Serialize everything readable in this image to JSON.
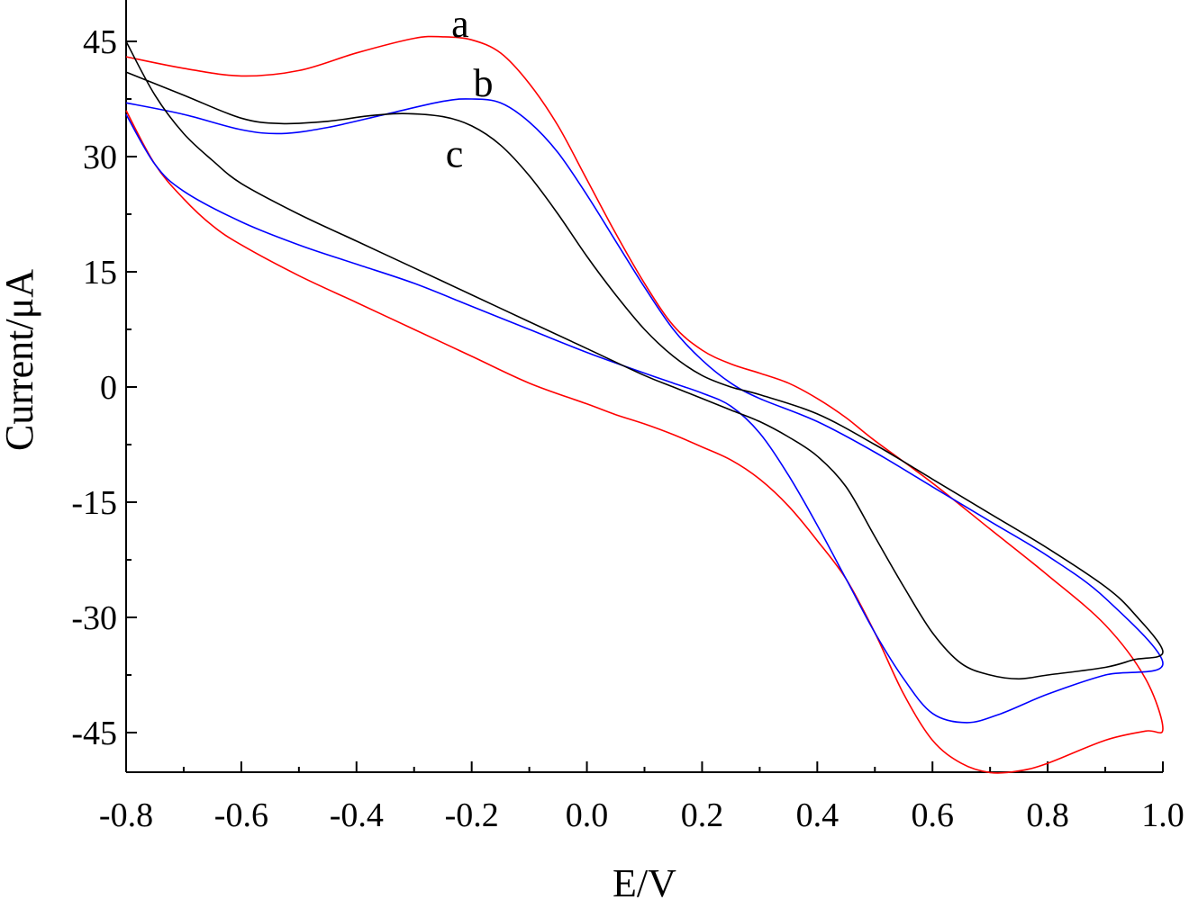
{
  "chart_data": {
    "type": "line",
    "xlabel": "E/V",
    "ylabel": "Current/μA",
    "xlim": [
      -0.8,
      1.0
    ],
    "ylim": [
      -50,
      50
    ],
    "xticks": [
      "-0.8",
      "-0.6",
      "-0.4",
      "-0.2",
      "0.0",
      "0.2",
      "0.4",
      "0.6",
      "0.8",
      "1.0"
    ],
    "yticks": [
      "45",
      "30",
      "15",
      "0",
      "-15",
      "-30",
      "-45"
    ],
    "grid": false,
    "series": [
      {
        "name": "a",
        "color": "#ff0000",
        "label_at": [
          -0.22,
          47.2
        ],
        "points": [
          [
            -0.8,
            43.0
          ],
          [
            -0.7,
            41.5
          ],
          [
            -0.6,
            40.5
          ],
          [
            -0.5,
            41.2
          ],
          [
            -0.4,
            43.5
          ],
          [
            -0.3,
            45.4
          ],
          [
            -0.25,
            45.6
          ],
          [
            -0.2,
            45.2
          ],
          [
            -0.15,
            43.5
          ],
          [
            -0.1,
            39.5
          ],
          [
            -0.05,
            34.0
          ],
          [
            0.0,
            27.0
          ],
          [
            0.05,
            20.0
          ],
          [
            0.1,
            13.5
          ],
          [
            0.15,
            8.0
          ],
          [
            0.2,
            4.8
          ],
          [
            0.25,
            3.0
          ],
          [
            0.3,
            1.8
          ],
          [
            0.35,
            0.5
          ],
          [
            0.4,
            -1.5
          ],
          [
            0.45,
            -4.0
          ],
          [
            0.5,
            -7.0
          ],
          [
            0.6,
            -12.5
          ],
          [
            0.7,
            -18.5
          ],
          [
            0.8,
            -24.5
          ],
          [
            0.9,
            -31.0
          ],
          [
            0.97,
            -38.0
          ],
          [
            1.0,
            -44.5
          ],
          [
            0.97,
            -44.8
          ],
          [
            0.9,
            -46.0
          ],
          [
            0.8,
            -49.0
          ],
          [
            0.75,
            -50.0
          ],
          [
            0.7,
            -50.2
          ],
          [
            0.65,
            -49.0
          ],
          [
            0.6,
            -46.0
          ],
          [
            0.55,
            -40.0
          ],
          [
            0.5,
            -32.0
          ],
          [
            0.45,
            -25.0
          ],
          [
            0.4,
            -20.0
          ],
          [
            0.35,
            -15.5
          ],
          [
            0.3,
            -12.0
          ],
          [
            0.25,
            -9.5
          ],
          [
            0.2,
            -7.8
          ],
          [
            0.15,
            -6.2
          ],
          [
            0.1,
            -4.8
          ],
          [
            0.05,
            -3.6
          ],
          [
            0.0,
            -2.2
          ],
          [
            -0.1,
            0.5
          ],
          [
            -0.2,
            4.0
          ],
          [
            -0.3,
            7.5
          ],
          [
            -0.4,
            11.0
          ],
          [
            -0.5,
            14.5
          ],
          [
            -0.6,
            18.5
          ],
          [
            -0.65,
            21.0
          ],
          [
            -0.7,
            24.5
          ],
          [
            -0.75,
            29.0
          ],
          [
            -0.8,
            36.0
          ]
        ]
      },
      {
        "name": "b",
        "color": "#0000ff",
        "label_at": [
          -0.18,
          39.5
        ],
        "points": [
          [
            -0.8,
            37.0
          ],
          [
            -0.7,
            35.5
          ],
          [
            -0.6,
            33.5
          ],
          [
            -0.53,
            33.0
          ],
          [
            -0.45,
            33.8
          ],
          [
            -0.35,
            35.5
          ],
          [
            -0.25,
            37.2
          ],
          [
            -0.2,
            37.5
          ],
          [
            -0.15,
            37.0
          ],
          [
            -0.1,
            34.5
          ],
          [
            -0.05,
            30.5
          ],
          [
            0.0,
            25.0
          ],
          [
            0.05,
            19.0
          ],
          [
            0.1,
            13.0
          ],
          [
            0.15,
            7.5
          ],
          [
            0.2,
            3.5
          ],
          [
            0.25,
            0.5
          ],
          [
            0.3,
            -1.5
          ],
          [
            0.4,
            -4.5
          ],
          [
            0.5,
            -8.5
          ],
          [
            0.6,
            -13.0
          ],
          [
            0.7,
            -17.5
          ],
          [
            0.8,
            -22.0
          ],
          [
            0.9,
            -27.5
          ],
          [
            1.0,
            -36.0
          ],
          [
            0.9,
            -37.5
          ],
          [
            0.8,
            -40.0
          ],
          [
            0.72,
            -42.5
          ],
          [
            0.66,
            -43.7
          ],
          [
            0.6,
            -42.5
          ],
          [
            0.55,
            -38.0
          ],
          [
            0.5,
            -32.0
          ],
          [
            0.45,
            -25.0
          ],
          [
            0.4,
            -18.0
          ],
          [
            0.35,
            -11.5
          ],
          [
            0.3,
            -6.0
          ],
          [
            0.25,
            -2.5
          ],
          [
            0.2,
            -0.8
          ],
          [
            0.15,
            0.5
          ],
          [
            0.1,
            1.8
          ],
          [
            0.0,
            4.5
          ],
          [
            -0.1,
            7.5
          ],
          [
            -0.2,
            10.5
          ],
          [
            -0.3,
            13.5
          ],
          [
            -0.4,
            16.0
          ],
          [
            -0.5,
            18.5
          ],
          [
            -0.6,
            21.5
          ],
          [
            -0.7,
            25.5
          ],
          [
            -0.75,
            29.0
          ],
          [
            -0.8,
            35.5
          ]
        ]
      },
      {
        "name": "c",
        "color": "#000000",
        "label_at": [
          -0.23,
          30.3
        ],
        "points": [
          [
            -0.8,
            41.0
          ],
          [
            -0.7,
            38.0
          ],
          [
            -0.6,
            35.0
          ],
          [
            -0.53,
            34.3
          ],
          [
            -0.45,
            34.6
          ],
          [
            -0.38,
            35.3
          ],
          [
            -0.32,
            35.6
          ],
          [
            -0.25,
            35.2
          ],
          [
            -0.2,
            34.0
          ],
          [
            -0.15,
            31.5
          ],
          [
            -0.1,
            27.5
          ],
          [
            -0.05,
            22.5
          ],
          [
            0.0,
            17.0
          ],
          [
            0.05,
            12.0
          ],
          [
            0.1,
            7.5
          ],
          [
            0.15,
            4.0
          ],
          [
            0.2,
            1.5
          ],
          [
            0.25,
            0.0
          ],
          [
            0.3,
            -1.0
          ],
          [
            0.4,
            -3.5
          ],
          [
            0.5,
            -7.5
          ],
          [
            0.6,
            -12.0
          ],
          [
            0.7,
            -16.5
          ],
          [
            0.8,
            -21.0
          ],
          [
            0.9,
            -26.0
          ],
          [
            0.95,
            -29.5
          ],
          [
            1.0,
            -34.5
          ],
          [
            0.95,
            -35.5
          ],
          [
            0.9,
            -36.5
          ],
          [
            0.8,
            -37.5
          ],
          [
            0.75,
            -38.0
          ],
          [
            0.7,
            -37.5
          ],
          [
            0.65,
            -36.0
          ],
          [
            0.6,
            -32.0
          ],
          [
            0.55,
            -26.0
          ],
          [
            0.5,
            -19.5
          ],
          [
            0.45,
            -13.0
          ],
          [
            0.4,
            -9.0
          ],
          [
            0.35,
            -6.5
          ],
          [
            0.3,
            -4.5
          ],
          [
            0.25,
            -3.0
          ],
          [
            0.2,
            -1.5
          ],
          [
            0.15,
            0.0
          ],
          [
            0.1,
            1.5
          ],
          [
            0.0,
            5.0
          ],
          [
            -0.1,
            8.5
          ],
          [
            -0.2,
            12.0
          ],
          [
            -0.3,
            15.5
          ],
          [
            -0.4,
            19.0
          ],
          [
            -0.5,
            22.5
          ],
          [
            -0.6,
            26.5
          ],
          [
            -0.65,
            29.5
          ],
          [
            -0.7,
            33.0
          ],
          [
            -0.75,
            38.0
          ],
          [
            -0.8,
            45.0
          ]
        ]
      }
    ]
  }
}
